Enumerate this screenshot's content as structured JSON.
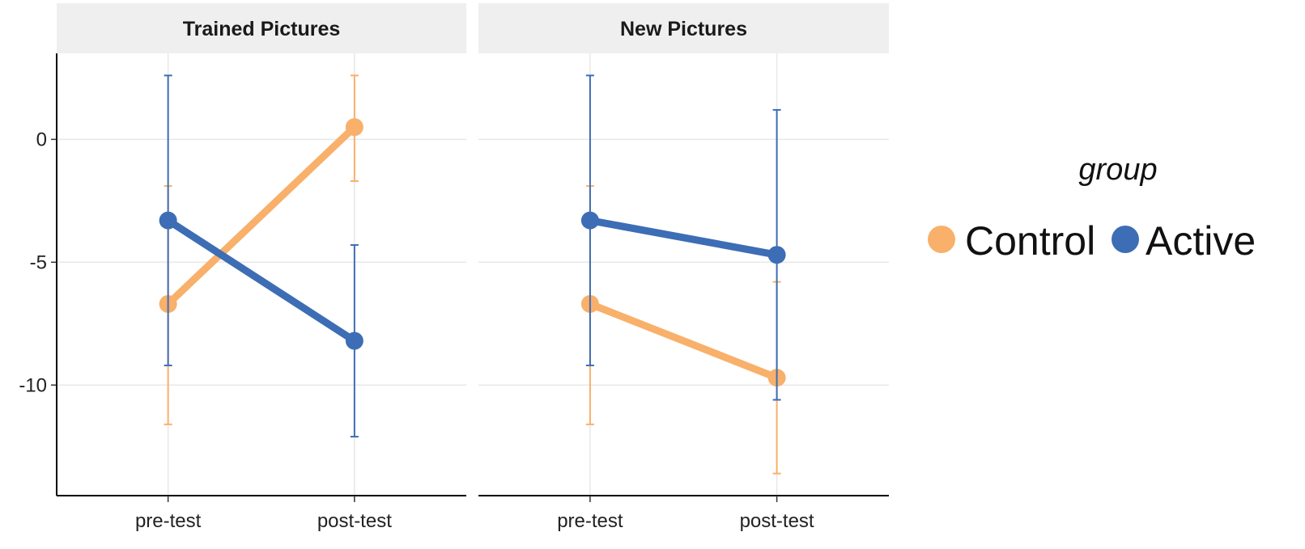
{
  "chart_data": {
    "type": "line",
    "facets": [
      "Trained Pictures",
      "New Pictures"
    ],
    "categories": [
      "pre-test",
      "post-test"
    ],
    "xlabel": "",
    "ylabel": "",
    "ylim": [
      -14.5,
      3.5
    ],
    "yticks": [
      0,
      -5,
      -10
    ],
    "grid": true,
    "legend": {
      "title": "group",
      "position": "right",
      "entries": [
        {
          "name": "Control",
          "color": "#F8B06A"
        },
        {
          "name": "Active",
          "color": "#3D6DB5"
        }
      ]
    },
    "series": [
      {
        "name": "Control",
        "color": "#F8B06A",
        "panels": [
          {
            "values": [
              -6.7,
              0.5
            ],
            "lower": [
              -11.6,
              -1.7
            ],
            "upper": [
              -1.9,
              2.6
            ]
          },
          {
            "values": [
              -6.7,
              -9.7
            ],
            "lower": [
              -11.6,
              -13.6
            ],
            "upper": [
              -1.9,
              -5.8
            ]
          }
        ]
      },
      {
        "name": "Active",
        "color": "#3D6DB5",
        "panels": [
          {
            "values": [
              -3.3,
              -8.2
            ],
            "lower": [
              -9.2,
              -12.1
            ],
            "upper": [
              2.6,
              -4.3
            ]
          },
          {
            "values": [
              -3.3,
              -4.7
            ],
            "lower": [
              -9.2,
              -10.6
            ],
            "upper": [
              2.6,
              1.2
            ]
          }
        ]
      }
    ]
  }
}
